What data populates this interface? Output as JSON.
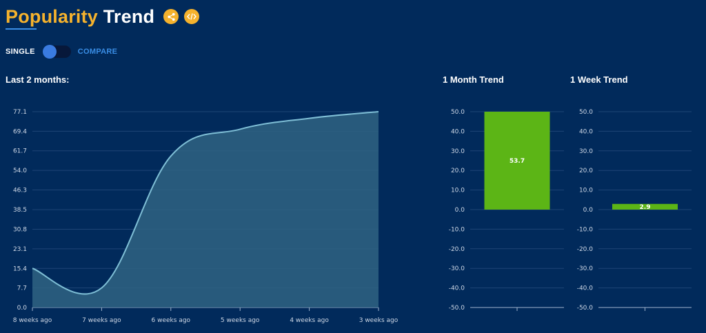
{
  "header": {
    "title_part1": "Popularity",
    "title_part2": "Trend",
    "share_icon": "share-icon",
    "embed_icon": "code-embed-icon",
    "accent_color": "#f5b22d"
  },
  "mode_toggle": {
    "left_label": "SINGLE",
    "right_label": "COMPARE",
    "selected": "SINGLE"
  },
  "sections": {
    "main_label": "Last 2 months:",
    "month_label": "1 Month Trend",
    "week_label": "1 Week Trend"
  },
  "chart_data": [
    {
      "type": "area",
      "x": [
        "8 weeks ago",
        "7 weeks ago",
        "6 weeks ago",
        "5 weeks ago",
        "4 weeks ago",
        "3 weeks ago"
      ],
      "y_ticks": [
        "0.0",
        "7.7",
        "15.4",
        "23.1",
        "30.8",
        "38.5",
        "46.3",
        "54.0",
        "61.7",
        "69.4",
        "77.1"
      ],
      "ylim": [
        0,
        77.1
      ],
      "series": [
        {
          "values": [
            15.4,
            7.7,
            59.6,
            70.2,
            74.5,
            77.1
          ]
        }
      ],
      "line_color": "#7fbfd6",
      "fill_color": "#2f6383",
      "grid": true
    },
    {
      "type": "bar",
      "categories": [
        ""
      ],
      "values": [
        53.7
      ],
      "value_labels": [
        "53.7"
      ],
      "y_ticks": [
        "-50.0",
        "-40.0",
        "-30.0",
        "-20.0",
        "-10.0",
        "0.0",
        "10.0",
        "20.0",
        "30.0",
        "40.0",
        "50.0"
      ],
      "ylim": [
        -50,
        50
      ],
      "bar_color": "#5cb516",
      "grid": true
    },
    {
      "type": "bar",
      "categories": [
        ""
      ],
      "values": [
        2.9
      ],
      "value_labels": [
        "2.9"
      ],
      "y_ticks": [
        "-50.0",
        "-40.0",
        "-30.0",
        "-20.0",
        "-10.0",
        "0.0",
        "10.0",
        "20.0",
        "30.0",
        "40.0",
        "50.0"
      ],
      "ylim": [
        -50,
        50
      ],
      "bar_color": "#5cb516",
      "grid": true
    }
  ]
}
